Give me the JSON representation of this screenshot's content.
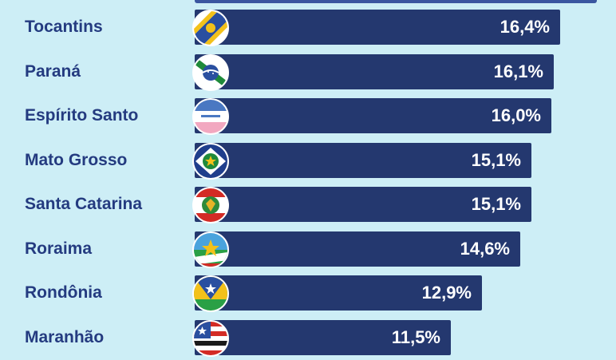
{
  "chart_data": {
    "type": "bar",
    "orientation": "horizontal",
    "categories": [
      "Tocantins",
      "Paraná",
      "Espírito Santo",
      "Mato Grosso",
      "Santa Catarina",
      "Roraima",
      "Rondônia",
      "Maranhão"
    ],
    "values": [
      16.4,
      16.1,
      16.0,
      15.1,
      15.1,
      14.6,
      12.9,
      11.5
    ],
    "value_labels": [
      "16,4%",
      "16,1%",
      "16,0%",
      "15,1%",
      "15,1%",
      "14,6%",
      "12,9%",
      "11,5%"
    ],
    "unit": "%",
    "xlim": [
      0,
      18.4
    ],
    "grid": false,
    "flag_icons": [
      "tocantins-flag-icon",
      "parana-flag-icon",
      "espirito-santo-flag-icon",
      "mato-grosso-flag-icon",
      "santa-catarina-flag-icon",
      "roraima-flag-icon",
      "rondonia-flag-icon",
      "maranhao-flag-icon"
    ]
  },
  "colors": {
    "background": "#cdeef6",
    "bar": "#24386f",
    "label": "#243b80",
    "value_text": "#ffffff"
  }
}
